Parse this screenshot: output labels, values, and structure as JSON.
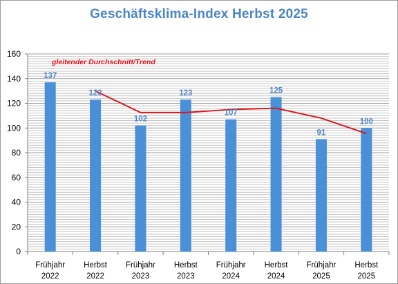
{
  "chart_data": {
    "type": "bar",
    "title": "Geschäftsklima-Index  Herbst  2025",
    "categories": [
      [
        "Frühjahr",
        "2022"
      ],
      [
        "Herbst",
        "2022"
      ],
      [
        "Frühjahr",
        "2023"
      ],
      [
        "Herbst",
        "2023"
      ],
      [
        "Frühjahr",
        "2024"
      ],
      [
        "Herbst",
        "2024"
      ],
      [
        "Frühjahr",
        "2025"
      ],
      [
        "Herbst",
        "2025"
      ]
    ],
    "series": [
      {
        "values": [
          137,
          123,
          102,
          123,
          107,
          125,
          91,
          100
        ],
        "color": "#4a90d9"
      },
      {
        "name": "gleitender Durchschnitt/Trend",
        "type": "line",
        "color": "#e0141e",
        "values": [
          null,
          130,
          112.5,
          112.5,
          115,
          116,
          108,
          95.5
        ]
      }
    ],
    "ylim": [
      0,
      160
    ],
    "yticks": [
      0,
      20,
      40,
      60,
      80,
      100,
      120,
      140,
      160
    ],
    "grid": true,
    "xlabel": "",
    "ylabel": ""
  }
}
